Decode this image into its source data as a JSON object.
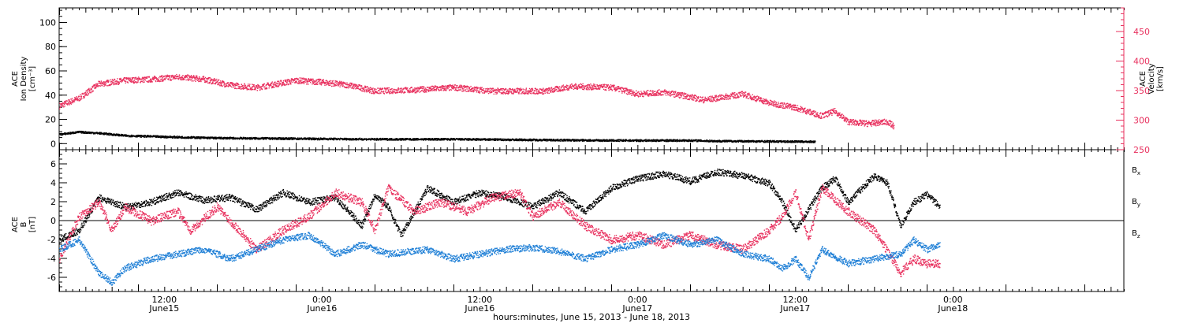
{
  "chart_data": [
    {
      "type": "scatter",
      "panel": "top",
      "ylabel": [
        "ACE",
        "Ion Density",
        "[cm⁻³]"
      ],
      "y2label": [
        "ACE",
        "Velocity",
        "[km/s]"
      ],
      "ylim": [
        -5,
        112
      ],
      "y2lim": [
        250,
        490
      ],
      "yticks": [
        0,
        20,
        40,
        60,
        80,
        100
      ],
      "y2ticks": [
        250,
        300,
        350,
        400,
        450
      ],
      "colors": {
        "density": "#000000",
        "velocity": "#e8305e"
      },
      "series": [
        {
          "axis": "left",
          "points": [
            [
              0,
              8
            ],
            [
              3,
              10
            ],
            [
              6,
              9
            ],
            [
              10,
              7
            ],
            [
              16,
              6
            ],
            [
              24,
              5
            ],
            [
              36,
              4.5
            ],
            [
              48,
              4
            ],
            [
              60,
              4
            ],
            [
              72,
              3.5
            ],
            [
              84,
              3
            ],
            [
              96,
              3
            ],
            [
              100,
              2.5
            ],
            [
              115,
              2
            ]
          ]
        },
        {
          "axis": "right",
          "points": [
            [
              0,
              325
            ],
            [
              3,
              338
            ],
            [
              6,
              362
            ],
            [
              10,
              368
            ],
            [
              14,
              370
            ],
            [
              18,
              374
            ],
            [
              22,
              370
            ],
            [
              26,
              360
            ],
            [
              30,
              356
            ],
            [
              36,
              368
            ],
            [
              40,
              365
            ],
            [
              44,
              360
            ],
            [
              48,
              350
            ],
            [
              54,
              352
            ],
            [
              60,
              356
            ],
            [
              66,
              350
            ],
            [
              70,
              350
            ],
            [
              74,
              350
            ],
            [
              78,
              358
            ],
            [
              84,
              356
            ],
            [
              88,
              345
            ],
            [
              92,
              348
            ],
            [
              96,
              340
            ],
            [
              98,
              335
            ],
            [
              100,
              338
            ],
            [
              104,
              345
            ],
            [
              108,
              330
            ],
            [
              112,
              322
            ],
            [
              116,
              308
            ],
            [
              118,
              316
            ],
            [
              120,
              298
            ],
            [
              123,
              295
            ],
            [
              126,
              298
            ],
            [
              127,
              290
            ]
          ]
        }
      ]
    },
    {
      "type": "scatter",
      "panel": "bottom",
      "ylabel": [
        "ACE",
        "B",
        "[nT]"
      ],
      "ylim": [
        -7.5,
        7.5
      ],
      "yticks": [
        -6,
        -4,
        -2,
        0,
        2,
        4,
        6
      ],
      "legend": [
        {
          "name": "Bx",
          "base": "B",
          "sub": "x",
          "color": "#000000"
        },
        {
          "name": "By",
          "base": "B",
          "sub": "y",
          "color": "#1e7fd6"
        },
        {
          "name": "Bz",
          "base": "B",
          "sub": "z",
          "color": "#e8305e"
        }
      ],
      "series": [
        {
          "name": "Bx",
          "points": [
            [
              0,
              -2.0
            ],
            [
              3,
              -1.0
            ],
            [
              6,
              2.5
            ],
            [
              10,
              1.5
            ],
            [
              14,
              2.0
            ],
            [
              18,
              3.0
            ],
            [
              22,
              2.2
            ],
            [
              26,
              2.5
            ],
            [
              30,
              1.2
            ],
            [
              34,
              3.0
            ],
            [
              38,
              2.0
            ],
            [
              42,
              2.5
            ],
            [
              46,
              -0.5
            ],
            [
              48,
              2.8
            ],
            [
              50,
              1.5
            ],
            [
              52,
              -1.5
            ],
            [
              56,
              3.5
            ],
            [
              60,
              2.0
            ],
            [
              64,
              3.0
            ],
            [
              68,
              2.5
            ],
            [
              72,
              1.5
            ],
            [
              76,
              3.0
            ],
            [
              80,
              1.0
            ],
            [
              84,
              3.5
            ],
            [
              88,
              4.5
            ],
            [
              92,
              5.0
            ],
            [
              96,
              4.2
            ],
            [
              100,
              5.2
            ],
            [
              104,
              4.8
            ],
            [
              108,
              4.0
            ],
            [
              110,
              2.0
            ],
            [
              112,
              -1.0
            ],
            [
              116,
              3.5
            ],
            [
              118,
              4.5
            ],
            [
              120,
              2.0
            ],
            [
              124,
              4.8
            ],
            [
              126,
              4.0
            ],
            [
              128,
              -0.5
            ],
            [
              130,
              2.0
            ],
            [
              132,
              2.8
            ],
            [
              134,
              1.5
            ]
          ]
        },
        {
          "name": "By",
          "points": [
            [
              0,
              -3.0
            ],
            [
              3,
              -2.0
            ],
            [
              6,
              -5.5
            ],
            [
              8,
              -6.5
            ],
            [
              10,
              -5.0
            ],
            [
              14,
              -4.0
            ],
            [
              18,
              -3.5
            ],
            [
              22,
              -3.0
            ],
            [
              26,
              -4.0
            ],
            [
              30,
              -3.0
            ],
            [
              34,
              -2.0
            ],
            [
              38,
              -1.5
            ],
            [
              42,
              -3.5
            ],
            [
              46,
              -2.5
            ],
            [
              50,
              -3.5
            ],
            [
              56,
              -3.0
            ],
            [
              60,
              -4.0
            ],
            [
              64,
              -3.5
            ],
            [
              68,
              -3.0
            ],
            [
              72,
              -2.8
            ],
            [
              76,
              -3.2
            ],
            [
              80,
              -4.0
            ],
            [
              84,
              -3.0
            ],
            [
              88,
              -2.5
            ],
            [
              92,
              -1.5
            ],
            [
              96,
              -2.5
            ],
            [
              100,
              -2.0
            ],
            [
              104,
              -3.5
            ],
            [
              108,
              -4.0
            ],
            [
              110,
              -5.0
            ],
            [
              112,
              -4.0
            ],
            [
              114,
              -6.0
            ],
            [
              116,
              -3.0
            ],
            [
              120,
              -4.5
            ],
            [
              124,
              -4.0
            ],
            [
              128,
              -3.5
            ],
            [
              130,
              -2.0
            ],
            [
              132,
              -3.0
            ],
            [
              134,
              -2.5
            ]
          ]
        },
        {
          "name": "Bz",
          "points": [
            [
              0,
              -4.0
            ],
            [
              3,
              0.5
            ],
            [
              6,
              2.0
            ],
            [
              8,
              -1.0
            ],
            [
              10,
              1.5
            ],
            [
              14,
              0.0
            ],
            [
              18,
              1.0
            ],
            [
              20,
              -1.0
            ],
            [
              24,
              1.5
            ],
            [
              28,
              -1.5
            ],
            [
              30,
              -3.0
            ],
            [
              34,
              -1.0
            ],
            [
              38,
              0.5
            ],
            [
              42,
              3.0
            ],
            [
              46,
              2.0
            ],
            [
              48,
              -1.0
            ],
            [
              50,
              3.5
            ],
            [
              54,
              1.0
            ],
            [
              58,
              2.0
            ],
            [
              62,
              1.0
            ],
            [
              66,
              2.5
            ],
            [
              70,
              3.0
            ],
            [
              72,
              0.5
            ],
            [
              76,
              2.0
            ],
            [
              80,
              -0.5
            ],
            [
              84,
              -2.0
            ],
            [
              88,
              -1.5
            ],
            [
              92,
              -2.5
            ],
            [
              96,
              -1.5
            ],
            [
              100,
              -2.5
            ],
            [
              104,
              -3.0
            ],
            [
              108,
              -1.0
            ],
            [
              110,
              0.5
            ],
            [
              112,
              3.0
            ],
            [
              114,
              -2.0
            ],
            [
              116,
              3.5
            ],
            [
              120,
              1.0
            ],
            [
              124,
              -1.0
            ],
            [
              128,
              -5.5
            ],
            [
              130,
              -4.0
            ],
            [
              132,
              -4.5
            ],
            [
              134,
              -4.5
            ]
          ]
        }
      ]
    }
  ],
  "xaxis": {
    "label": "hours:minutes, June 15, 2013 - June 18, 2013",
    "xlim": [
      0,
      162
    ],
    "major_labels": [
      {
        "x": 16,
        "time": "12:00",
        "date": "June15"
      },
      {
        "x": 40,
        "time": "0:00",
        "date": "June16"
      },
      {
        "x": 64,
        "time": "12:00",
        "date": "June16"
      },
      {
        "x": 88,
        "time": "0:00",
        "date": "June17"
      },
      {
        "x": 112,
        "time": "12:00",
        "date": "June17"
      },
      {
        "x": 136,
        "time": "0:00",
        "date": "June18"
      }
    ],
    "minor_step": 1,
    "mid_step": 4
  }
}
